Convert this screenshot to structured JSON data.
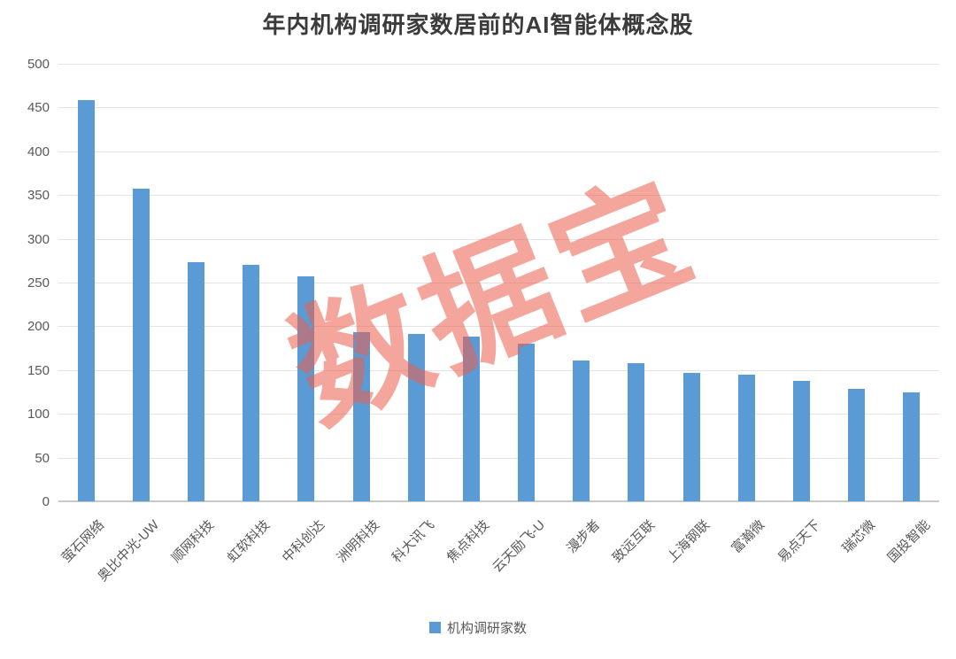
{
  "title": "年内机构调研家数居前的AI智能体概念股",
  "watermark": "数据宝",
  "colors": {
    "bar": "#5B9BD5",
    "watermark": "rgba(237,92,75,0.55)",
    "gridline": "#E4E4E4",
    "axis_text": "#595959",
    "title_text": "#3B3B3B"
  },
  "chart_data": {
    "type": "bar",
    "title": "年内机构调研家数居前的AI智能体概念股",
    "categories": [
      "萤石网络",
      "奥比中光-UW",
      "顺网科技",
      "虹软科技",
      "中科创达",
      "洲明科技",
      "科大讯飞",
      "焦点科技",
      "云天励飞-U",
      "漫步者",
      "致远互联",
      "上海钢联",
      "富瀚微",
      "易点天下",
      "瑞芯微",
      "国投智能"
    ],
    "series": [
      {
        "name": "机构调研家数",
        "values": [
          459,
          357,
          273,
          270,
          257,
          193,
          191,
          188,
          180,
          161,
          158,
          147,
          145,
          138,
          129,
          124
        ]
      }
    ],
    "xlabel": "",
    "ylabel": "",
    "ylim": [
      0,
      500
    ],
    "y_ticks": [
      0,
      50,
      100,
      150,
      200,
      250,
      300,
      350,
      400,
      450,
      500
    ],
    "grid": true,
    "legend_position": "bottom",
    "annotations": [
      "数据宝"
    ]
  }
}
